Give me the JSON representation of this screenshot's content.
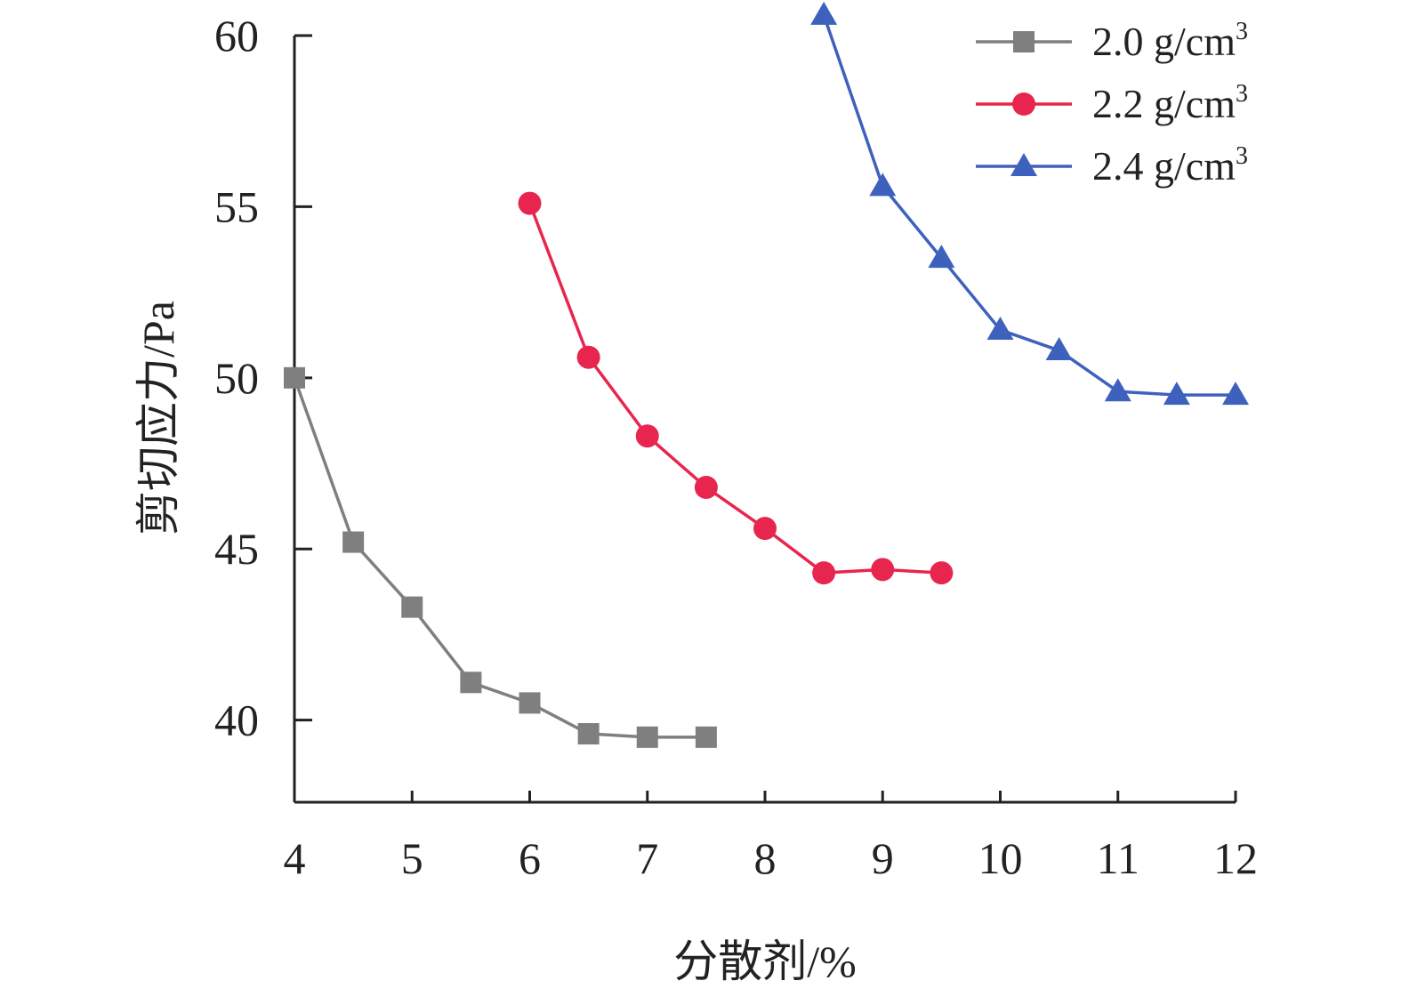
{
  "chart_data": {
    "type": "line",
    "xlabel": "分散剂/%",
    "ylabel": "剪切应力/Pa",
    "xlim": [
      4,
      12
    ],
    "ylim": [
      37.6,
      60
    ],
    "xticks": [
      4,
      5,
      6,
      7,
      8,
      9,
      10,
      11,
      12
    ],
    "yticks": [
      40,
      45,
      50,
      55,
      60
    ],
    "grid": false,
    "legend_position": "top-right",
    "series": [
      {
        "name": "2.0 g/cm3",
        "label_main": "2.0 g/cm",
        "label_sup": "3",
        "color": "#7f7f7f",
        "marker": "square",
        "x": [
          4,
          4.5,
          5,
          5.5,
          6,
          6.5,
          7,
          7.5
        ],
        "y": [
          50.0,
          45.2,
          43.3,
          41.1,
          40.5,
          39.6,
          39.5,
          39.5
        ]
      },
      {
        "name": "2.2 g/cm3",
        "label_main": "2.2 g/cm",
        "label_sup": "3",
        "color": "#e8254e",
        "marker": "circle",
        "x": [
          6,
          6.5,
          7,
          7.5,
          8,
          8.5,
          9,
          9.5
        ],
        "y": [
          55.1,
          50.6,
          48.3,
          46.8,
          45.6,
          44.3,
          44.4,
          44.3
        ]
      },
      {
        "name": "2.4 g/cm3",
        "label_main": "2.4 g/cm",
        "label_sup": "3",
        "color": "#3f61be",
        "marker": "triangle",
        "x": [
          8.5,
          9,
          9.5,
          10,
          10.5,
          11,
          11.5,
          12
        ],
        "y": [
          60.6,
          55.6,
          53.5,
          51.4,
          50.8,
          49.6,
          49.5,
          49.5
        ]
      }
    ]
  }
}
